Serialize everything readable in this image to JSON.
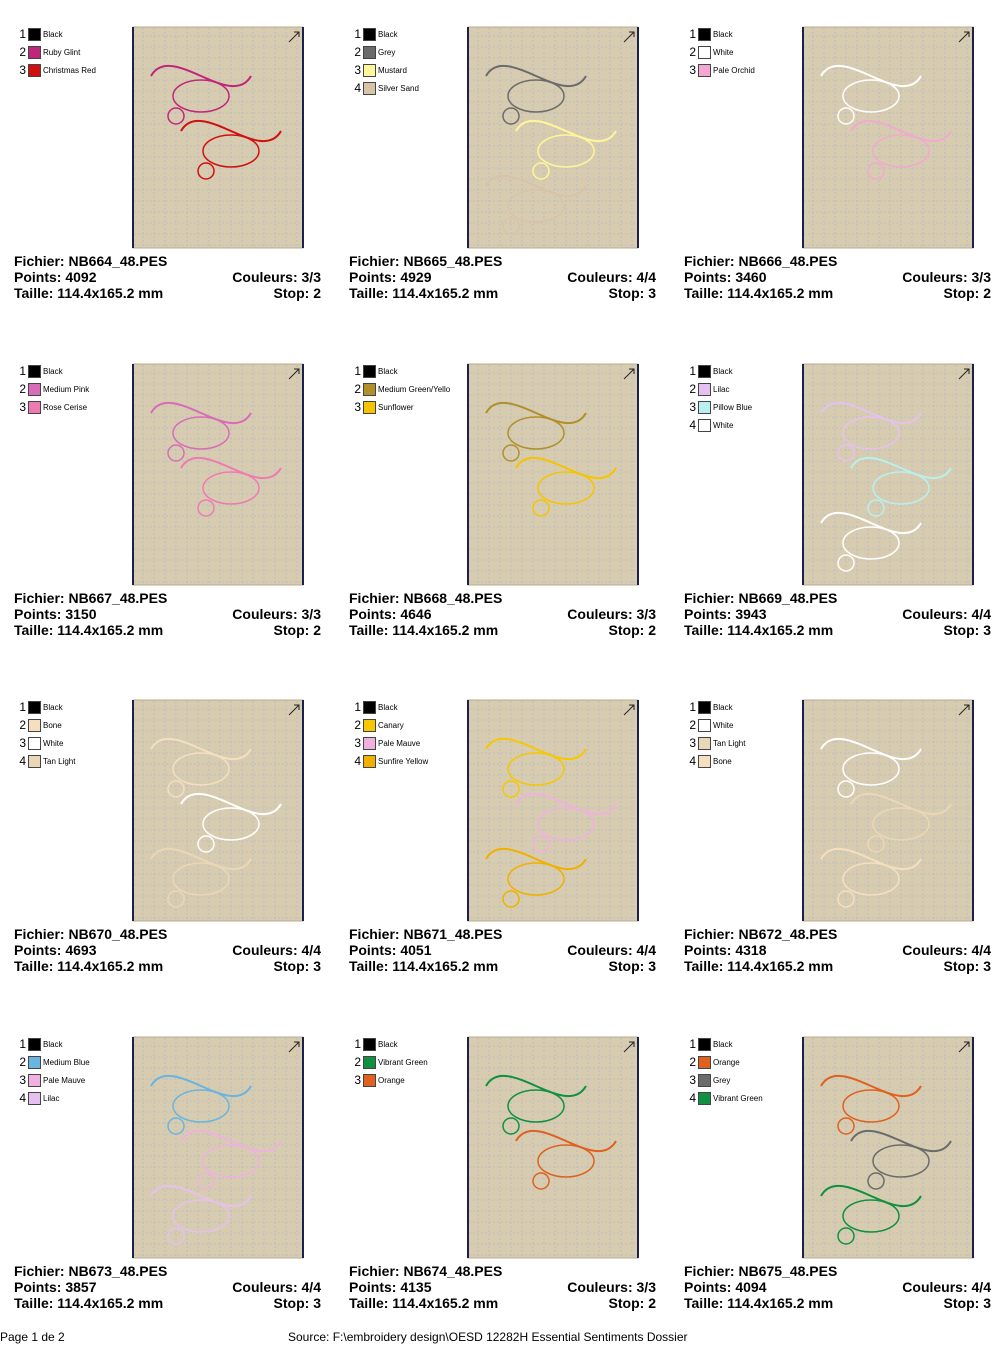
{
  "cards": [
    {
      "colors": [
        {
          "num": 1,
          "name": "Black",
          "color": "#000000"
        },
        {
          "num": 2,
          "name": "Ruby Glint",
          "color": "#c0267a"
        },
        {
          "num": 3,
          "name": "Christmas Red",
          "color": "#d01010"
        }
      ],
      "file": "Fichier: NB664_48.PES",
      "points": "Points: 4092",
      "size": "Taille: 114.4x165.2 mm",
      "couleurs": "Couleurs: 3/3",
      "stop": "Stop: 2"
    },
    {
      "colors": [
        {
          "num": 1,
          "name": "Black",
          "color": "#000000"
        },
        {
          "num": 2,
          "name": "Grey",
          "color": "#6b6b6b"
        },
        {
          "num": 3,
          "name": "Mustard",
          "color": "#fff59a"
        },
        {
          "num": 4,
          "name": "Silver Sand",
          "color": "#d7c3a8"
        }
      ],
      "file": "Fichier: NB665_48.PES",
      "points": "Points: 4929",
      "size": "Taille: 114.4x165.2 mm",
      "couleurs": "Couleurs: 4/4",
      "stop": "Stop: 3"
    },
    {
      "colors": [
        {
          "num": 1,
          "name": "Black",
          "color": "#000000"
        },
        {
          "num": 2,
          "name": "White",
          "color": "#ffffff"
        },
        {
          "num": 3,
          "name": "Pale Orchid",
          "color": "#f2a8d0"
        }
      ],
      "file": "Fichier: NB666_48.PES",
      "points": "Points: 3460",
      "size": "Taille: 114.4x165.2 mm",
      "couleurs": "Couleurs: 3/3",
      "stop": "Stop: 2"
    },
    {
      "colors": [
        {
          "num": 1,
          "name": "Black",
          "color": "#000000"
        },
        {
          "num": 2,
          "name": "Medium Pink",
          "color": "#d96cb8"
        },
        {
          "num": 3,
          "name": "Rose Cerise",
          "color": "#ee7ab4"
        }
      ],
      "file": "Fichier: NB667_48.PES",
      "points": "Points: 3150",
      "size": "Taille: 114.4x165.2 mm",
      "couleurs": "Couleurs: 3/3",
      "stop": "Stop: 2"
    },
    {
      "colors": [
        {
          "num": 1,
          "name": "Black",
          "color": "#000000"
        },
        {
          "num": 2,
          "name": "Medium Green/Yello",
          "color": "#b0902a"
        },
        {
          "num": 3,
          "name": "Sunflower",
          "color": "#f5c400"
        }
      ],
      "file": "Fichier: NB668_48.PES",
      "points": "Points: 4646",
      "size": "Taille: 114.4x165.2 mm",
      "couleurs": "Couleurs: 3/3",
      "stop": "Stop: 2"
    },
    {
      "colors": [
        {
          "num": 1,
          "name": "Black",
          "color": "#000000"
        },
        {
          "num": 2,
          "name": "Lilac",
          "color": "#e6c0ee"
        },
        {
          "num": 3,
          "name": "Pillow Blue",
          "color": "#b8f0f0"
        },
        {
          "num": 4,
          "name": "White",
          "color": "#ffffff"
        }
      ],
      "file": "Fichier: NB669_48.PES",
      "points": "Points: 3943",
      "size": "Taille: 114.4x165.2 mm",
      "couleurs": "Couleurs: 4/4",
      "stop": "Stop: 3"
    },
    {
      "colors": [
        {
          "num": 1,
          "name": "Black",
          "color": "#000000"
        },
        {
          "num": 2,
          "name": "Bone",
          "color": "#f5dfc0"
        },
        {
          "num": 3,
          "name": "White",
          "color": "#ffffff"
        },
        {
          "num": 4,
          "name": "Tan Light",
          "color": "#ead7b8"
        }
      ],
      "file": "Fichier: NB670_48.PES",
      "points": "Points: 4693",
      "size": "Taille: 114.4x165.2 mm",
      "couleurs": "Couleurs: 4/4",
      "stop": "Stop: 3"
    },
    {
      "colors": [
        {
          "num": 1,
          "name": "Black",
          "color": "#000000"
        },
        {
          "num": 2,
          "name": "Canary",
          "color": "#f5c800"
        },
        {
          "num": 3,
          "name": "Pale Mauve",
          "color": "#f0b0e0"
        },
        {
          "num": 4,
          "name": "Sunfire Yellow",
          "color": "#f0b000"
        }
      ],
      "file": "Fichier: NB671_48.PES",
      "points": "Points: 4051",
      "size": "Taille: 114.4x165.2 mm",
      "couleurs": "Couleurs: 4/4",
      "stop": "Stop: 3"
    },
    {
      "colors": [
        {
          "num": 1,
          "name": "Black",
          "color": "#000000"
        },
        {
          "num": 2,
          "name": "White",
          "color": "#ffffff"
        },
        {
          "num": 3,
          "name": "Tan Light",
          "color": "#ead7b8"
        },
        {
          "num": 4,
          "name": "Bone",
          "color": "#f5dfc0"
        }
      ],
      "file": "Fichier: NB672_48.PES",
      "points": "Points: 4318",
      "size": "Taille: 114.4x165.2 mm",
      "couleurs": "Couleurs: 4/4",
      "stop": "Stop: 3"
    },
    {
      "colors": [
        {
          "num": 1,
          "name": "Black",
          "color": "#000000"
        },
        {
          "num": 2,
          "name": "Medium Blue",
          "color": "#6ab4e0"
        },
        {
          "num": 3,
          "name": "Pale Mauve",
          "color": "#f0b0e0"
        },
        {
          "num": 4,
          "name": "Lilac",
          "color": "#e6c0ee"
        }
      ],
      "file": "Fichier: NB673_48.PES",
      "points": "Points: 3857",
      "size": "Taille: 114.4x165.2 mm",
      "couleurs": "Couleurs: 4/4",
      "stop": "Stop: 3"
    },
    {
      "colors": [
        {
          "num": 1,
          "name": "Black",
          "color": "#000000"
        },
        {
          "num": 2,
          "name": "Vibrant Green",
          "color": "#109040"
        },
        {
          "num": 3,
          "name": "Orange",
          "color": "#e06020"
        }
      ],
      "file": "Fichier: NB674_48.PES",
      "points": "Points: 4135",
      "size": "Taille: 114.4x165.2 mm",
      "couleurs": "Couleurs: 3/3",
      "stop": "Stop: 2"
    },
    {
      "colors": [
        {
          "num": 1,
          "name": "Black",
          "color": "#000000"
        },
        {
          "num": 2,
          "name": "Orange",
          "color": "#e06020"
        },
        {
          "num": 3,
          "name": "Grey",
          "color": "#6b6b6b"
        },
        {
          "num": 4,
          "name": "Vibrant Green",
          "color": "#109040"
        }
      ],
      "file": "Fichier: NB675_48.PES",
      "points": "Points: 4094",
      "size": "Taille: 114.4x165.2 mm",
      "couleurs": "Couleurs: 4/4",
      "stop": "Stop: 3"
    }
  ],
  "footer": {
    "page": "Page 1 de 2",
    "source": "Source: F:\\embroidery design\\OESD 12282H Essential Sentiments Dossier"
  }
}
